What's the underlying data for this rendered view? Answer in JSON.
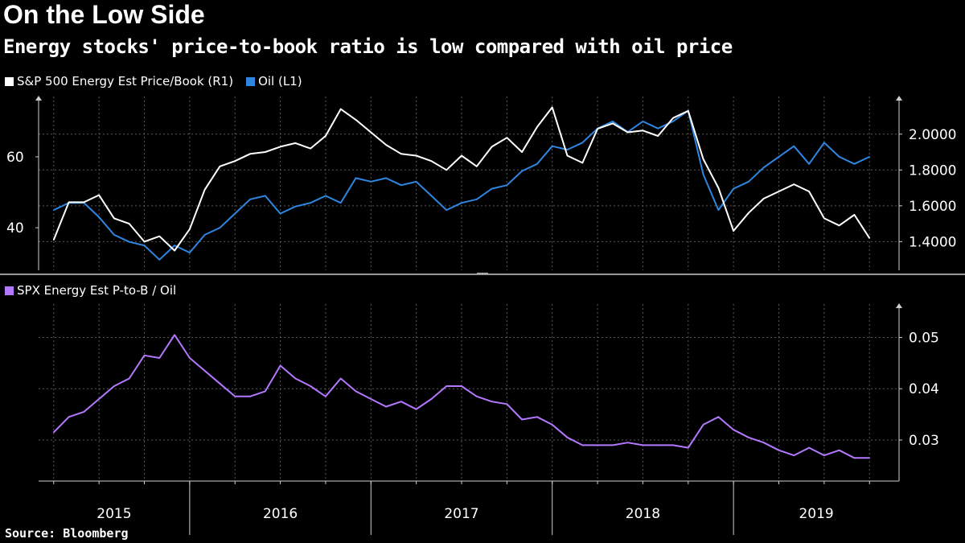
{
  "title": "On the Low Side",
  "subtitle": "Energy stocks' price-to-book ratio is low compared with oil price",
  "source": "Source: Bloomberg",
  "colors": {
    "background": "#000000",
    "white_series": "#ffffff",
    "oil": "#2f86e0",
    "ratio": "#b478ff",
    "grid": "#5a5a5a"
  },
  "chart_data": [
    {
      "type": "line",
      "legend": [
        {
          "name": "S&P 500 Energy Est Price/Book (R1)",
          "color": "#ffffff"
        },
        {
          "name": "Oil (L1)",
          "color": "#2f86e0"
        }
      ],
      "x_ticks": [
        "2015",
        "2016",
        "2017",
        "2018",
        "2019"
      ],
      "left_axis": {
        "ticks": [
          "40",
          "60"
        ],
        "ylim": [
          28,
          77
        ]
      },
      "right_axis": {
        "ticks": [
          "1.4000",
          "1.6000",
          "1.8000",
          "2.0000"
        ],
        "ylim": [
          1.24,
          2.21
        ]
      },
      "series": [
        {
          "name": "S&P 500 Energy Est Price/Book (R1)",
          "axis": "right",
          "x": [
            "2015-04",
            "2015-05",
            "2015-06",
            "2015-07",
            "2015-08",
            "2015-09",
            "2015-10",
            "2015-11",
            "2015-12",
            "2016-01",
            "2016-02",
            "2016-03",
            "2016-04",
            "2016-05",
            "2016-06",
            "2016-07",
            "2016-08",
            "2016-09",
            "2016-10",
            "2016-11",
            "2016-12",
            "2017-01",
            "2017-02",
            "2017-03",
            "2017-04",
            "2017-05",
            "2017-06",
            "2017-07",
            "2017-08",
            "2017-09",
            "2017-10",
            "2017-11",
            "2017-12",
            "2018-01",
            "2018-02",
            "2018-03",
            "2018-04",
            "2018-05",
            "2018-06",
            "2018-07",
            "2018-08",
            "2018-09",
            "2018-10",
            "2018-11",
            "2018-12",
            "2019-01",
            "2019-02",
            "2019-03",
            "2019-04",
            "2019-05",
            "2019-06",
            "2019-07",
            "2019-08",
            "2019-09",
            "2019-10"
          ],
          "values": [
            1.41,
            1.62,
            1.62,
            1.66,
            1.53,
            1.5,
            1.4,
            1.43,
            1.35,
            1.47,
            1.69,
            1.82,
            1.85,
            1.89,
            1.9,
            1.93,
            1.95,
            1.92,
            1.99,
            2.14,
            2.08,
            2.01,
            1.94,
            1.89,
            1.88,
            1.85,
            1.8,
            1.88,
            1.82,
            1.93,
            1.98,
            1.9,
            2.04,
            2.15,
            1.88,
            1.84,
            2.03,
            2.06,
            2.01,
            2.02,
            1.99,
            2.09,
            2.13,
            1.86,
            1.7,
            1.46,
            1.56,
            1.64,
            1.68,
            1.72,
            1.68,
            1.53,
            1.49,
            1.55,
            1.42
          ]
        },
        {
          "name": "Oil (L1)",
          "axis": "left",
          "x": [
            "2015-04",
            "2015-05",
            "2015-06",
            "2015-07",
            "2015-08",
            "2015-09",
            "2015-10",
            "2015-11",
            "2015-12",
            "2016-01",
            "2016-02",
            "2016-03",
            "2016-04",
            "2016-05",
            "2016-06",
            "2016-07",
            "2016-08",
            "2016-09",
            "2016-10",
            "2016-11",
            "2016-12",
            "2017-01",
            "2017-02",
            "2017-03",
            "2017-04",
            "2017-05",
            "2017-06",
            "2017-07",
            "2017-08",
            "2017-09",
            "2017-10",
            "2017-11",
            "2017-12",
            "2018-01",
            "2018-02",
            "2018-03",
            "2018-04",
            "2018-05",
            "2018-06",
            "2018-07",
            "2018-08",
            "2018-09",
            "2018-10",
            "2018-11",
            "2018-12",
            "2019-01",
            "2019-02",
            "2019-03",
            "2019-04",
            "2019-05",
            "2019-06",
            "2019-07",
            "2019-08",
            "2019-09",
            "2019-10"
          ],
          "values": [
            45,
            47,
            47,
            43,
            38,
            36,
            35,
            31,
            35,
            33,
            38,
            40,
            44,
            48,
            49,
            44,
            46,
            47,
            49,
            47,
            54,
            53,
            54,
            52,
            53,
            49,
            45,
            47,
            48,
            51,
            52,
            56,
            58,
            63,
            62,
            64,
            68,
            70,
            67,
            70,
            68,
            70,
            73,
            55,
            45,
            51,
            53,
            57,
            60,
            63,
            58,
            64,
            60,
            58,
            60
          ]
        },
        {
          "name": "SPX Energy Est P-to-B / Oil",
          "axis": "right",
          "panel": 2,
          "x": [
            "2015-04",
            "2015-05",
            "2015-06",
            "2015-07",
            "2015-08",
            "2015-09",
            "2015-10",
            "2015-11",
            "2015-12",
            "2016-01",
            "2016-02",
            "2016-03",
            "2016-04",
            "2016-05",
            "2016-06",
            "2016-07",
            "2016-08",
            "2016-09",
            "2016-10",
            "2016-11",
            "2016-12",
            "2017-01",
            "2017-02",
            "2017-03",
            "2017-04",
            "2017-05",
            "2017-06",
            "2017-07",
            "2017-08",
            "2017-09",
            "2017-10",
            "2017-11",
            "2017-12",
            "2018-01",
            "2018-02",
            "2018-03",
            "2018-04",
            "2018-05",
            "2018-06",
            "2018-07",
            "2018-08",
            "2018-09",
            "2018-10",
            "2018-11",
            "2018-12",
            "2019-01",
            "2019-02",
            "2019-03",
            "2019-04",
            "2019-05",
            "2019-06",
            "2019-07",
            "2019-08",
            "2019-09",
            "2019-10"
          ],
          "values": [
            0.0315,
            0.0345,
            0.0355,
            0.038,
            0.0405,
            0.042,
            0.0465,
            0.046,
            0.0505,
            0.046,
            0.0435,
            0.041,
            0.0385,
            0.0385,
            0.0395,
            0.0445,
            0.042,
            0.0405,
            0.0385,
            0.042,
            0.0395,
            0.038,
            0.0365,
            0.0375,
            0.036,
            0.038,
            0.0405,
            0.0405,
            0.0385,
            0.0375,
            0.037,
            0.034,
            0.0345,
            0.033,
            0.0305,
            0.029,
            0.029,
            0.029,
            0.0295,
            0.029,
            0.029,
            0.029,
            0.0285,
            0.033,
            0.0345,
            0.032,
            0.0305,
            0.0295,
            0.028,
            0.027,
            0.0285,
            0.027,
            0.028,
            0.0265,
            0.0265
          ]
        }
      ]
    },
    {
      "type": "line",
      "legend": [
        {
          "name": "SPX Energy Est P-to-B / Oil",
          "color": "#b478ff"
        }
      ],
      "right_axis": {
        "ticks": [
          "0.03",
          "0.04",
          "0.05"
        ],
        "ylim": [
          0.022,
          0.0565
        ]
      }
    }
  ]
}
